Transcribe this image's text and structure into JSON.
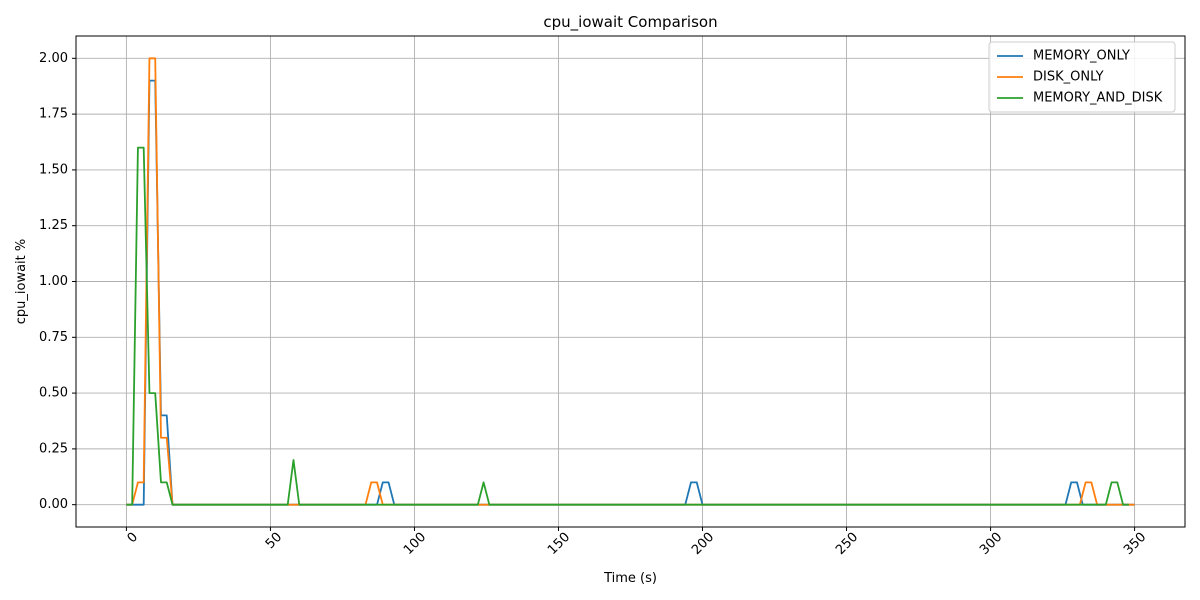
{
  "chart_data": {
    "type": "line",
    "title": "cpu_iowait Comparison",
    "xlabel": "Time (s)",
    "ylabel": "cpu_iowait %",
    "xlim": [
      -17.5,
      367.5
    ],
    "ylim": [
      -0.1,
      2.1
    ],
    "xticks": [
      0,
      50,
      100,
      150,
      200,
      250,
      300,
      350
    ],
    "yticks": [
      0.0,
      0.25,
      0.5,
      0.75,
      1.0,
      1.25,
      1.5,
      1.75,
      2.0
    ],
    "xtick_labels": [
      "0",
      "50",
      "100",
      "150",
      "200",
      "250",
      "300",
      "350"
    ],
    "ytick_labels": [
      "0.00",
      "0.25",
      "0.50",
      "0.75",
      "1.00",
      "1.25",
      "1.50",
      "1.75",
      "2.00"
    ],
    "xtick_rotation": 45,
    "grid": true,
    "legend_position": "top-right",
    "series": [
      {
        "name": "MEMORY_ONLY",
        "color": "#1f77b4",
        "points": [
          [
            0,
            0
          ],
          [
            2,
            0
          ],
          [
            4,
            0
          ],
          [
            6,
            0
          ],
          [
            8,
            1.9
          ],
          [
            10,
            1.9
          ],
          [
            12,
            0.4
          ],
          [
            14,
            0.4
          ],
          [
            16,
            0
          ],
          [
            85,
            0
          ],
          [
            87,
            0
          ],
          [
            89,
            0.1
          ],
          [
            91,
            0.1
          ],
          [
            93,
            0
          ],
          [
            194,
            0
          ],
          [
            196,
            0.1
          ],
          [
            198,
            0.1
          ],
          [
            200,
            0
          ],
          [
            326,
            0
          ],
          [
            328,
            0.1
          ],
          [
            330,
            0.1
          ],
          [
            332,
            0
          ],
          [
            350,
            0
          ]
        ]
      },
      {
        "name": "DISK_ONLY",
        "color": "#ff7f0e",
        "points": [
          [
            0,
            0
          ],
          [
            2,
            0
          ],
          [
            4,
            0.1
          ],
          [
            6,
            0.1
          ],
          [
            8,
            2.0
          ],
          [
            10,
            2.0
          ],
          [
            12,
            0.3
          ],
          [
            14,
            0.3
          ],
          [
            16,
            0
          ],
          [
            81,
            0
          ],
          [
            83,
            0
          ],
          [
            85,
            0.1
          ],
          [
            87,
            0.1
          ],
          [
            89,
            0
          ],
          [
            329,
            0
          ],
          [
            331,
            0
          ],
          [
            333,
            0.1
          ],
          [
            335,
            0.1
          ],
          [
            337,
            0
          ],
          [
            350,
            0
          ]
        ]
      },
      {
        "name": "MEMORY_AND_DISK",
        "color": "#2ca02c",
        "points": [
          [
            0,
            0
          ],
          [
            2,
            0
          ],
          [
            4,
            1.6
          ],
          [
            6,
            1.6
          ],
          [
            8,
            0.5
          ],
          [
            10,
            0.5
          ],
          [
            12,
            0.1
          ],
          [
            14,
            0.1
          ],
          [
            16,
            0
          ],
          [
            56,
            0
          ],
          [
            58,
            0.2
          ],
          [
            60,
            0
          ],
          [
            122,
            0
          ],
          [
            124,
            0.1
          ],
          [
            126,
            0
          ],
          [
            338,
            0
          ],
          [
            340,
            0
          ],
          [
            342,
            0.1
          ],
          [
            344,
            0.1
          ],
          [
            346,
            0
          ],
          [
            348,
            0
          ]
        ]
      }
    ]
  }
}
